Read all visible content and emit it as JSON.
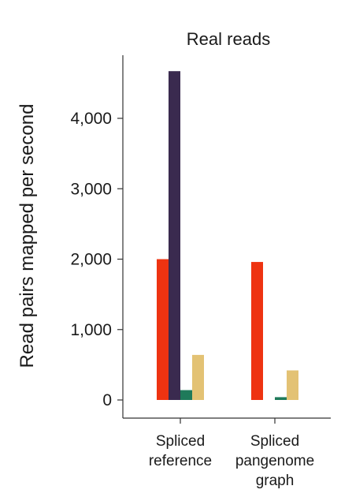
{
  "chart_data": {
    "type": "bar",
    "title": "Real reads",
    "ylabel": "Read pairs mapped per second",
    "xlabel": "",
    "ylim": [
      0,
      4800
    ],
    "yticks": [
      0,
      1000,
      2000,
      3000,
      4000
    ],
    "ytick_labels": [
      "0",
      "1,000",
      "2,000",
      "3,000",
      "4,000"
    ],
    "grid": false,
    "legend": "none",
    "categories": [
      [
        "Spliced",
        "reference"
      ],
      [
        "Spliced",
        "pangenome",
        "graph"
      ]
    ],
    "series": [
      {
        "color": "#ee3311",
        "values": [
          2000,
          1960
        ]
      },
      {
        "color": "#3a2a4f",
        "values": [
          4670,
          null
        ]
      },
      {
        "color": "#1f7a5a",
        "values": [
          140,
          40
        ]
      },
      {
        "color": "#e3c274",
        "values": [
          640,
          420
        ]
      }
    ]
  }
}
